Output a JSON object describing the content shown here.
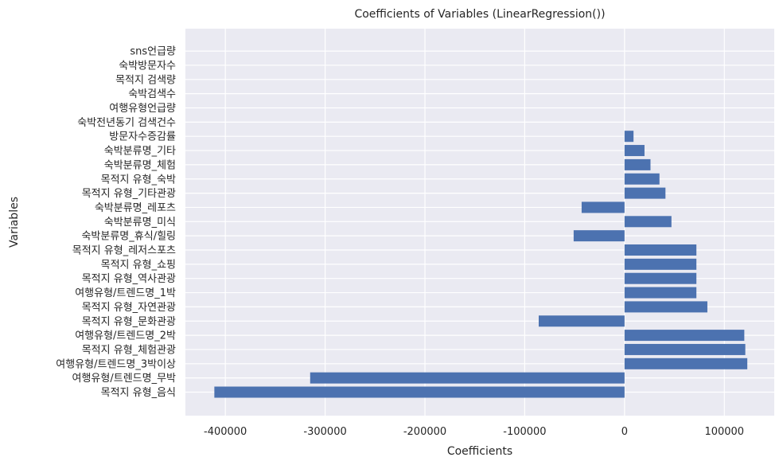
{
  "chart_data": {
    "type": "bar",
    "orientation": "horizontal",
    "title": "Coefficients of Variables (LinearRegression())",
    "xlabel": "Coefficients",
    "ylabel": "Variables",
    "xlim": [
      -440000,
      150000
    ],
    "xticks": [
      -400000,
      -300000,
      -200000,
      -100000,
      0,
      100000
    ],
    "xtick_labels": [
      "-400000",
      "-300000",
      "-200000",
      "-100000",
      "0",
      "100000"
    ],
    "grid": true,
    "background": "#eaeaf2",
    "bar_color": "#4c72b0",
    "categories": [
      "목적지 유형_음식",
      "여행유형/트렌드명_무박",
      "여행유형/트렌드명_3박이상",
      "목적지 유형_체험관광",
      "여행유형/트렌드명_2박",
      "목적지 유형_문화관광",
      "목적지 유형_자연관광",
      "여행유형/트렌드명_1박",
      "목적지 유형_역사관광",
      "목적지 유형_쇼핑",
      "목적지 유형_레저스포츠",
      "숙박분류명_휴식/힐링",
      "숙박분류명_미식",
      "숙박분류명_레포츠",
      "목적지 유형_기타관광",
      "목적지 유형_숙박",
      "숙박분류명_체험",
      "숙박분류명_기타",
      "방문자수증감률",
      "숙박전년동기 검색건수",
      "여행유형언급량",
      "숙박검색수",
      "목적지 검색량",
      "숙박방문자수",
      "sns언급량"
    ],
    "values": [
      -411000,
      -315000,
      123000,
      121000,
      120000,
      -86000,
      83000,
      72000,
      72000,
      72000,
      72000,
      -51000,
      47000,
      -43000,
      41000,
      35000,
      26000,
      20000,
      9000,
      0,
      0,
      0,
      0,
      0,
      0
    ]
  }
}
